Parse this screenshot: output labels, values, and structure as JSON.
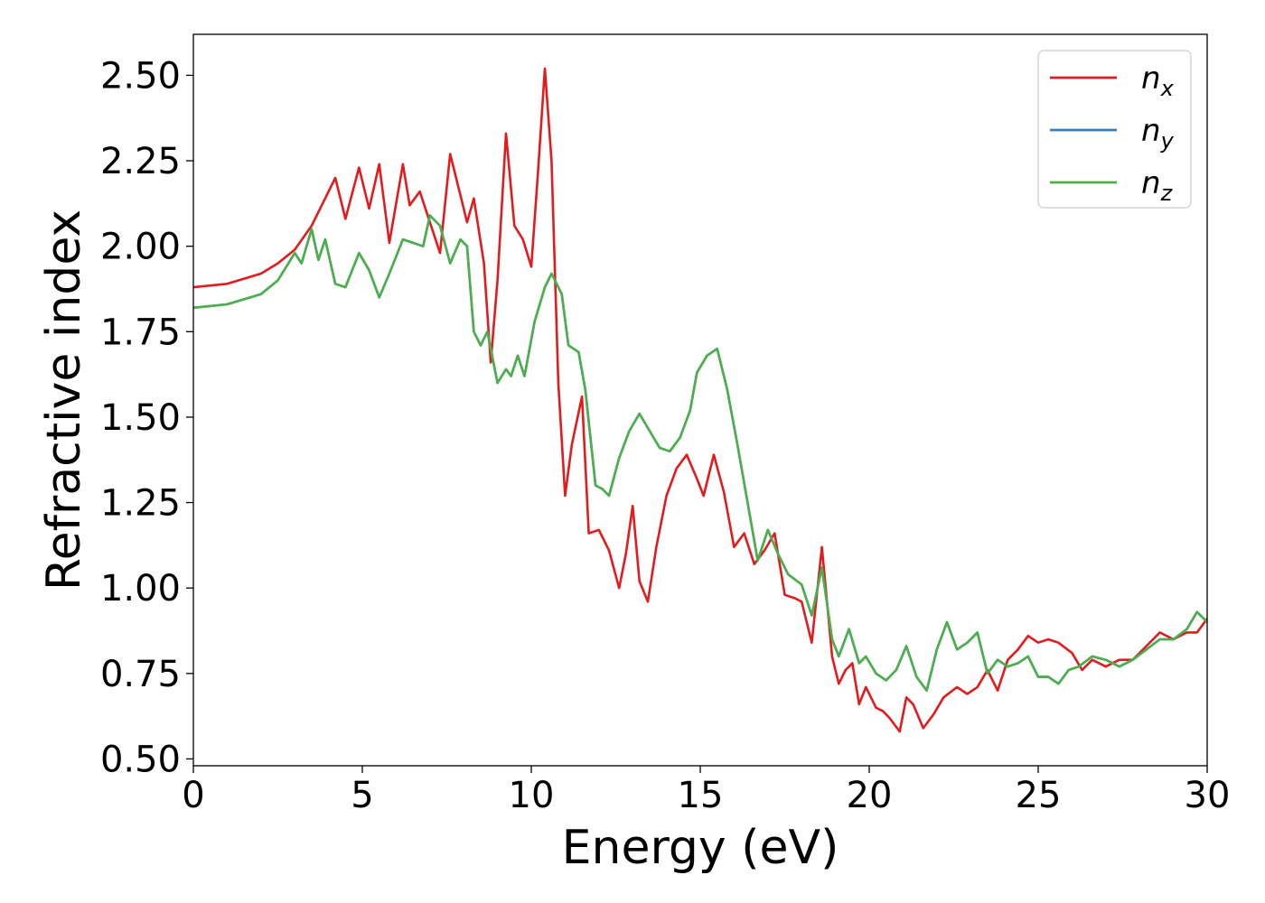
{
  "chart_data": {
    "type": "line",
    "title": "",
    "xlabel": "Energy (eV)",
    "ylabel": "Refractive index",
    "xlim": [
      0,
      30
    ],
    "ylim": [
      0.48,
      2.62
    ],
    "xticks": [
      0,
      5,
      10,
      15,
      20,
      25,
      30
    ],
    "xtick_labels": [
      "0",
      "5",
      "10",
      "15",
      "20",
      "25",
      "30"
    ],
    "yticks": [
      0.5,
      0.75,
      1.0,
      1.25,
      1.5,
      1.75,
      2.0,
      2.25,
      2.5
    ],
    "ytick_labels": [
      "0.50",
      "0.75",
      "1.00",
      "1.25",
      "1.50",
      "1.75",
      "2.00",
      "2.25",
      "2.50"
    ],
    "grid": false,
    "legend_position": "top-right",
    "series": [
      {
        "name": "n_x",
        "legend_base": "n",
        "legend_sub": "x",
        "color": "#e41a1c",
        "x": [
          0,
          1,
          2,
          2.5,
          3,
          3.5,
          3.8,
          4.2,
          4.5,
          4.9,
          5.2,
          5.5,
          5.8,
          6.2,
          6.4,
          6.7,
          7.0,
          7.3,
          7.6,
          7.9,
          8.1,
          8.3,
          8.6,
          8.8,
          9.0,
          9.25,
          9.5,
          9.75,
          10.0,
          10.2,
          10.4,
          10.6,
          10.8,
          11.0,
          11.2,
          11.5,
          11.7,
          12.0,
          12.3,
          12.6,
          12.8,
          13.0,
          13.2,
          13.45,
          13.7,
          14.0,
          14.3,
          14.6,
          14.9,
          15.1,
          15.4,
          15.7,
          16.0,
          16.3,
          16.6,
          16.9,
          17.2,
          17.5,
          17.8,
          18.0,
          18.3,
          18.6,
          18.9,
          19.1,
          19.3,
          19.5,
          19.7,
          19.9,
          20.2,
          20.4,
          20.6,
          20.9,
          21.1,
          21.3,
          21.6,
          21.9,
          22.2,
          22.6,
          22.9,
          23.2,
          23.5,
          23.8,
          24.1,
          24.4,
          24.7,
          25.0,
          25.3,
          25.6,
          26.0,
          26.3,
          26.6,
          27.0,
          27.4,
          27.8,
          28.2,
          28.6,
          29.0,
          29.4,
          29.7,
          30.0
        ],
        "y": [
          1.88,
          1.89,
          1.92,
          1.95,
          1.99,
          2.06,
          2.12,
          2.2,
          2.08,
          2.23,
          2.11,
          2.24,
          2.01,
          2.24,
          2.12,
          2.16,
          2.07,
          1.98,
          2.27,
          2.15,
          2.07,
          2.14,
          1.95,
          1.66,
          1.9,
          2.33,
          2.06,
          2.02,
          1.94,
          2.22,
          2.52,
          2.25,
          1.6,
          1.27,
          1.42,
          1.56,
          1.16,
          1.17,
          1.11,
          1.0,
          1.1,
          1.24,
          1.02,
          0.96,
          1.12,
          1.27,
          1.35,
          1.39,
          1.32,
          1.27,
          1.39,
          1.28,
          1.12,
          1.16,
          1.07,
          1.11,
          1.16,
          0.98,
          0.97,
          0.96,
          0.84,
          1.12,
          0.8,
          0.72,
          0.76,
          0.78,
          0.66,
          0.71,
          0.65,
          0.64,
          0.62,
          0.58,
          0.68,
          0.66,
          0.59,
          0.63,
          0.68,
          0.71,
          0.69,
          0.71,
          0.76,
          0.7,
          0.79,
          0.82,
          0.86,
          0.84,
          0.85,
          0.84,
          0.81,
          0.76,
          0.79,
          0.77,
          0.79,
          0.79,
          0.83,
          0.87,
          0.85,
          0.87,
          0.87,
          0.91
        ]
      },
      {
        "name": "n_y",
        "legend_base": "n",
        "legend_sub": "y",
        "color": "#377eb8",
        "x": [
          0,
          1,
          2,
          2.5,
          3.0,
          3.2,
          3.5,
          3.7,
          3.9,
          4.2,
          4.5,
          4.9,
          5.2,
          5.5,
          5.8,
          6.2,
          6.5,
          6.8,
          7.0,
          7.3,
          7.6,
          7.9,
          8.1,
          8.3,
          8.5,
          8.7,
          9.0,
          9.25,
          9.4,
          9.6,
          9.8,
          10.1,
          10.4,
          10.6,
          10.9,
          11.1,
          11.4,
          11.6,
          11.9,
          12.1,
          12.3,
          12.6,
          12.9,
          13.2,
          13.5,
          13.8,
          14.1,
          14.4,
          14.7,
          14.9,
          15.2,
          15.5,
          15.8,
          16.1,
          16.4,
          16.7,
          17.0,
          17.3,
          17.6,
          18.0,
          18.3,
          18.6,
          18.9,
          19.1,
          19.4,
          19.7,
          19.9,
          20.2,
          20.5,
          20.8,
          21.1,
          21.4,
          21.7,
          22.0,
          22.3,
          22.6,
          22.9,
          23.2,
          23.5,
          23.8,
          24.1,
          24.4,
          24.7,
          25.0,
          25.3,
          25.6,
          25.9,
          26.2,
          26.6,
          27.0,
          27.4,
          27.8,
          28.2,
          28.6,
          29.0,
          29.4,
          29.7,
          30.0
        ],
        "y": [
          1.82,
          1.83,
          1.86,
          1.9,
          1.98,
          1.95,
          2.05,
          1.96,
          2.02,
          1.89,
          1.88,
          1.98,
          1.93,
          1.85,
          1.92,
          2.02,
          2.01,
          2.0,
          2.09,
          2.06,
          1.95,
          2.02,
          2.0,
          1.75,
          1.71,
          1.75,
          1.6,
          1.64,
          1.62,
          1.68,
          1.62,
          1.78,
          1.88,
          1.92,
          1.86,
          1.71,
          1.69,
          1.58,
          1.3,
          1.29,
          1.27,
          1.38,
          1.46,
          1.51,
          1.46,
          1.41,
          1.4,
          1.44,
          1.52,
          1.63,
          1.68,
          1.7,
          1.58,
          1.42,
          1.25,
          1.08,
          1.17,
          1.1,
          1.04,
          1.01,
          0.92,
          1.06,
          0.85,
          0.8,
          0.88,
          0.78,
          0.8,
          0.75,
          0.73,
          0.76,
          0.83,
          0.74,
          0.7,
          0.82,
          0.9,
          0.82,
          0.84,
          0.87,
          0.75,
          0.79,
          0.77,
          0.78,
          0.8,
          0.74,
          0.74,
          0.72,
          0.76,
          0.77,
          0.8,
          0.79,
          0.77,
          0.79,
          0.82,
          0.85,
          0.85,
          0.88,
          0.93,
          0.9
        ]
      },
      {
        "name": "n_z",
        "legend_base": "n",
        "legend_sub": "z",
        "color": "#4daf4a",
        "x": [
          0,
          1,
          2,
          2.5,
          3.0,
          3.2,
          3.5,
          3.7,
          3.9,
          4.2,
          4.5,
          4.9,
          5.2,
          5.5,
          5.8,
          6.2,
          6.5,
          6.8,
          7.0,
          7.3,
          7.6,
          7.9,
          8.1,
          8.3,
          8.5,
          8.7,
          9.0,
          9.25,
          9.4,
          9.6,
          9.8,
          10.1,
          10.4,
          10.6,
          10.9,
          11.1,
          11.4,
          11.6,
          11.9,
          12.1,
          12.3,
          12.6,
          12.9,
          13.2,
          13.5,
          13.8,
          14.1,
          14.4,
          14.7,
          14.9,
          15.2,
          15.5,
          15.8,
          16.1,
          16.4,
          16.7,
          17.0,
          17.3,
          17.6,
          18.0,
          18.3,
          18.6,
          18.9,
          19.1,
          19.4,
          19.7,
          19.9,
          20.2,
          20.5,
          20.8,
          21.1,
          21.4,
          21.7,
          22.0,
          22.3,
          22.6,
          22.9,
          23.2,
          23.5,
          23.8,
          24.1,
          24.4,
          24.7,
          25.0,
          25.3,
          25.6,
          25.9,
          26.2,
          26.6,
          27.0,
          27.4,
          27.8,
          28.2,
          28.6,
          29.0,
          29.4,
          29.7,
          30.0
        ],
        "y": [
          1.82,
          1.83,
          1.86,
          1.9,
          1.98,
          1.95,
          2.05,
          1.96,
          2.02,
          1.89,
          1.88,
          1.98,
          1.93,
          1.85,
          1.92,
          2.02,
          2.01,
          2.0,
          2.09,
          2.06,
          1.95,
          2.02,
          2.0,
          1.75,
          1.71,
          1.75,
          1.6,
          1.64,
          1.62,
          1.68,
          1.62,
          1.78,
          1.88,
          1.92,
          1.86,
          1.71,
          1.69,
          1.58,
          1.3,
          1.29,
          1.27,
          1.38,
          1.46,
          1.51,
          1.46,
          1.41,
          1.4,
          1.44,
          1.52,
          1.63,
          1.68,
          1.7,
          1.58,
          1.42,
          1.25,
          1.08,
          1.17,
          1.1,
          1.04,
          1.01,
          0.92,
          1.06,
          0.85,
          0.8,
          0.88,
          0.78,
          0.8,
          0.75,
          0.73,
          0.76,
          0.83,
          0.74,
          0.7,
          0.82,
          0.9,
          0.82,
          0.84,
          0.87,
          0.75,
          0.79,
          0.77,
          0.78,
          0.8,
          0.74,
          0.74,
          0.72,
          0.76,
          0.77,
          0.8,
          0.79,
          0.77,
          0.79,
          0.82,
          0.85,
          0.85,
          0.88,
          0.93,
          0.9
        ]
      }
    ]
  }
}
